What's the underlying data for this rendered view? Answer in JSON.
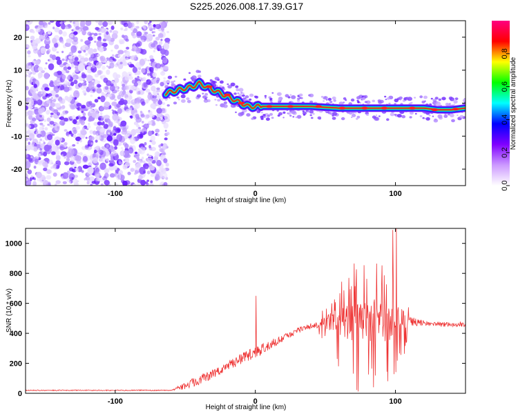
{
  "chart_data": [
    {
      "type": "heatmap",
      "title": "S225.2026.008.17.39.G17",
      "xlabel": "Height of straight line (km)",
      "ylabel": "Frequency (Hz)",
      "xlim": [
        -164,
        150
      ],
      "ylim": [
        -25,
        25
      ],
      "xticks": [
        -100,
        0,
        100
      ],
      "xtick_labels": [
        "-100",
        "0",
        "100"
      ],
      "yticks": [
        -20,
        -10,
        0,
        10,
        20
      ],
      "ytick_labels": [
        "-20",
        "-10",
        "0",
        "10",
        "20"
      ],
      "noise_region_x": [
        -164,
        -64
      ],
      "signal_trace": {
        "x": [
          -64,
          -55,
          -45,
          -40,
          -35,
          -30,
          -25,
          -20,
          -15,
          -10,
          -5,
          0,
          10,
          20,
          40,
          60,
          80,
          90,
          100,
          110,
          120,
          130,
          140,
          150
        ],
        "freq": [
          3,
          4,
          5,
          6,
          5,
          4,
          3,
          2,
          1,
          0,
          -1,
          -1,
          -1,
          -1,
          -1,
          -1.5,
          -1.5,
          -1.5,
          -1.5,
          -1.5,
          -1.5,
          -2,
          -2,
          -1.5
        ]
      },
      "colorbar": {
        "label": "Normalized spectral amplitude",
        "range": [
          0,
          1
        ],
        "ticks": [
          0.0,
          0.2,
          0.4,
          0.6,
          0.8
        ],
        "tick_labels": [
          "0.0",
          "0.2",
          "0.4",
          "0.6",
          "0.8"
        ],
        "colors": [
          "#ffffff",
          "#cc99ff",
          "#8000ff",
          "#0000ff",
          "#00ffff",
          "#00ff00",
          "#ffff00",
          "#ff0000",
          "#ff0080"
        ]
      }
    },
    {
      "type": "line",
      "xlabel": "Height of straight line (km)",
      "ylabel": "SNR (10 * v/v)",
      "xlim": [
        -164,
        150
      ],
      "ylim": [
        0,
        1100
      ],
      "xticks": [
        -100,
        0,
        100
      ],
      "xtick_labels": [
        "-100",
        "0",
        "100"
      ],
      "yticks": [
        0,
        200,
        400,
        600,
        800,
        1000
      ],
      "ytick_labels": [
        "0",
        "200",
        "400",
        "600",
        "800",
        "1000"
      ],
      "line_color": "#ee3333",
      "envelope": {
        "x": [
          -164,
          -60,
          -50,
          -40,
          -30,
          -20,
          -10,
          0,
          10,
          20,
          30,
          40,
          50,
          60,
          70,
          80,
          90,
          100,
          110,
          120,
          130,
          140,
          150
        ],
        "baseline": [
          20,
          20,
          50,
          90,
          130,
          180,
          230,
          270,
          320,
          370,
          420,
          450,
          470,
          480,
          480,
          480,
          480,
          480,
          480,
          470,
          460,
          460,
          460
        ],
        "spread": [
          8,
          8,
          60,
          80,
          80,
          80,
          90,
          100,
          80,
          60,
          50,
          50,
          100,
          250,
          350,
          380,
          350,
          300,
          100,
          40,
          40,
          40,
          40
        ]
      },
      "peaks": [
        {
          "x": 0.5,
          "y": 650
        },
        {
          "x": 98,
          "y": 1090
        },
        {
          "x": 100.5,
          "y": 1100
        }
      ]
    }
  ]
}
